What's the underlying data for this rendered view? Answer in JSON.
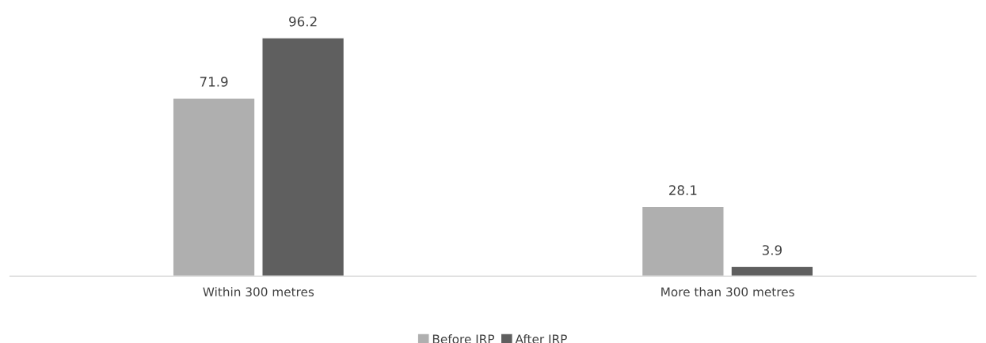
{
  "chart_data": {
    "type": "bar",
    "categories": [
      "Within 300 metres",
      "More than 300 metres"
    ],
    "series": [
      {
        "name": "Before IRP",
        "color": "#afafaf",
        "values": [
          71.9,
          28.1
        ]
      },
      {
        "name": "After IRP",
        "color": "#5f5f5f",
        "values": [
          96.2,
          3.9
        ]
      }
    ],
    "data_labels": true,
    "legend": "bottom",
    "grid": false
  }
}
